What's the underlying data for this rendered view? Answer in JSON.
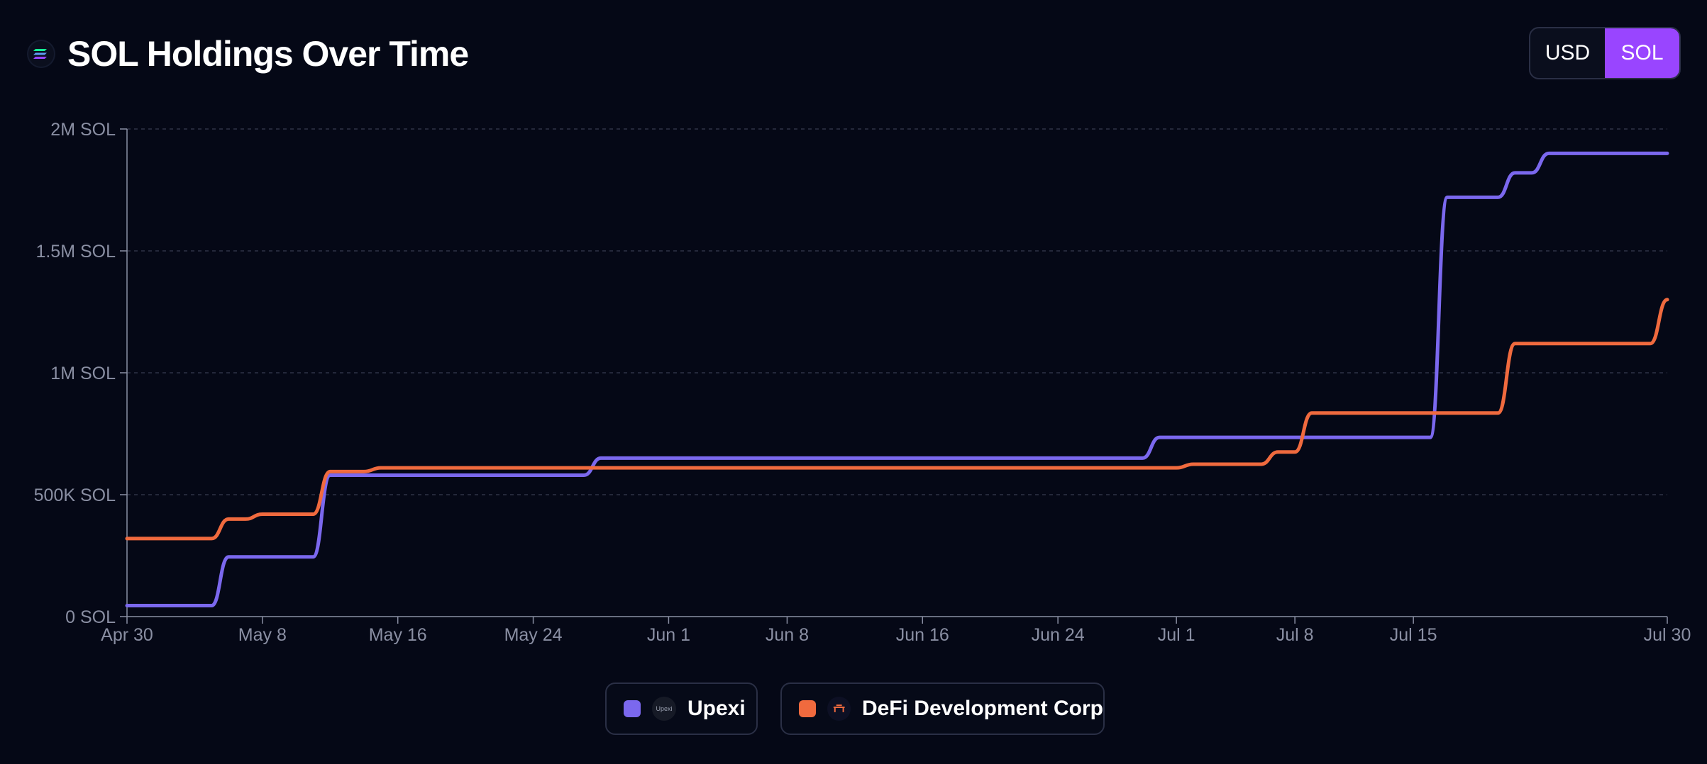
{
  "header": {
    "title": "SOL Holdings Over Time",
    "logo_icon": "solana-logo-icon"
  },
  "toggle": {
    "options": [
      "USD",
      "SOL"
    ],
    "selected": "SOL"
  },
  "colors": {
    "background": "#050816",
    "upexi": "#7b68ee",
    "defi": "#f06a3e",
    "toggle_active": "#9945ff",
    "axis": "#8a8fa3",
    "grid": "#2e3347"
  },
  "legend": [
    {
      "name": "Upexi",
      "color": "#7b68ee",
      "logo_text": "Upexi"
    },
    {
      "name": "DeFi Development Corp",
      "color": "#f06a3e",
      "logo_icon": "defi-dev-corp-logo-icon"
    }
  ],
  "chart_data": {
    "type": "line",
    "title": "SOL Holdings Over Time",
    "xlabel": "",
    "ylabel": "",
    "ylim": [
      0,
      2000000
    ],
    "yticks": [
      0,
      500000,
      1000000,
      1500000,
      2000000
    ],
    "ytick_labels": [
      "0 SOL",
      "500K SOL",
      "1M SOL",
      "1.5M SOL",
      "2M SOL"
    ],
    "xlim": [
      "2025-04-30",
      "2025-07-30"
    ],
    "xticks": [
      "2025-04-30",
      "2025-05-08",
      "2025-05-16",
      "2025-05-24",
      "2025-06-01",
      "2025-06-08",
      "2025-06-16",
      "2025-06-24",
      "2025-07-01",
      "2025-07-08",
      "2025-07-15",
      "2025-07-30"
    ],
    "xtick_labels": [
      "Apr 30",
      "May 8",
      "May 16",
      "May 24",
      "Jun 1",
      "Jun 8",
      "Jun 16",
      "Jun 24",
      "Jul 1",
      "Jul 8",
      "Jul 15",
      "Jul 30"
    ],
    "grid": "horizontal dashed",
    "legend_position": "bottom-center",
    "series": [
      {
        "name": "Upexi",
        "color": "#7b68ee",
        "points": [
          [
            "2025-04-30",
            45000
          ],
          [
            "2025-05-05",
            45000
          ],
          [
            "2025-05-06",
            245000
          ],
          [
            "2025-05-11",
            245000
          ],
          [
            "2025-05-12",
            580000
          ],
          [
            "2025-05-27",
            580000
          ],
          [
            "2025-05-28",
            650000
          ],
          [
            "2025-06-29",
            650000
          ],
          [
            "2025-06-30",
            735000
          ],
          [
            "2025-07-16",
            735000
          ],
          [
            "2025-07-17",
            1720000
          ],
          [
            "2025-07-20",
            1720000
          ],
          [
            "2025-07-21",
            1820000
          ],
          [
            "2025-07-22",
            1820000
          ],
          [
            "2025-07-23",
            1900000
          ],
          [
            "2025-07-30",
            1900000
          ]
        ]
      },
      {
        "name": "DeFi Development Corp",
        "color": "#f06a3e",
        "points": [
          [
            "2025-04-30",
            320000
          ],
          [
            "2025-05-05",
            320000
          ],
          [
            "2025-05-06",
            400000
          ],
          [
            "2025-05-07",
            400000
          ],
          [
            "2025-05-08",
            420000
          ],
          [
            "2025-05-11",
            420000
          ],
          [
            "2025-05-12",
            595000
          ],
          [
            "2025-05-14",
            595000
          ],
          [
            "2025-05-15",
            610000
          ],
          [
            "2025-07-01",
            610000
          ],
          [
            "2025-07-02",
            625000
          ],
          [
            "2025-07-06",
            625000
          ],
          [
            "2025-07-07",
            675000
          ],
          [
            "2025-07-08",
            675000
          ],
          [
            "2025-07-09",
            835000
          ],
          [
            "2025-07-20",
            835000
          ],
          [
            "2025-07-21",
            1120000
          ],
          [
            "2025-07-29",
            1120000
          ],
          [
            "2025-07-30",
            1300000
          ]
        ]
      }
    ]
  }
}
